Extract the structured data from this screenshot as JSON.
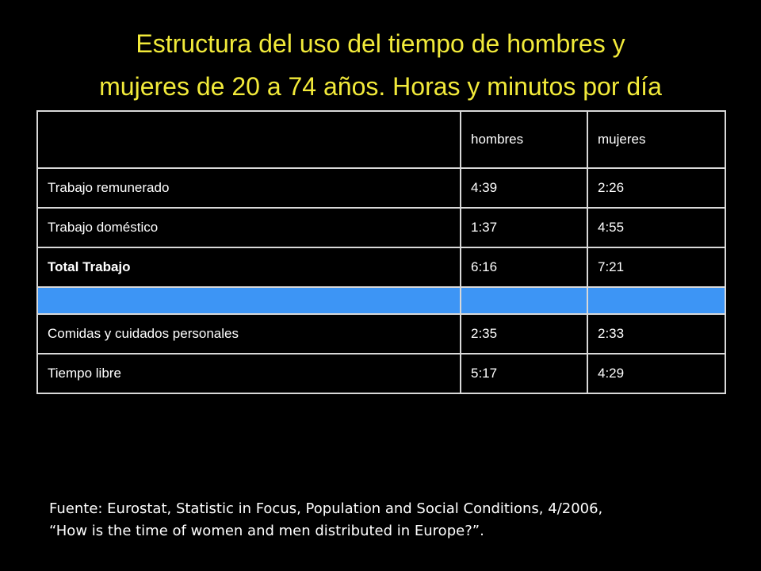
{
  "title": {
    "line1": "Estructura del uso del tiempo de hombres y",
    "line2": "mujeres de 20 a 74 años. Horas y minutos por día"
  },
  "table": {
    "headers": [
      "",
      "hombres",
      "mujeres"
    ],
    "rows": [
      {
        "label": "Trabajo remunerado",
        "hombres": "4:39",
        "mujeres": "2:26"
      },
      {
        "label": "Trabajo doméstico",
        "hombres": "1:37",
        "mujeres": "4:55"
      },
      {
        "label": "Total Trabajo",
        "hombres": "6:16",
        "mujeres": "7:21"
      },
      {
        "label": "",
        "hombres": "",
        "mujeres": ""
      },
      {
        "label": "Comidas y cuidados personales",
        "hombres": "2:35",
        "mujeres": "2:33"
      },
      {
        "label": "Tiempo libre",
        "hombres": "5:17",
        "mujeres": "4:29"
      }
    ]
  },
  "source": {
    "line1": "Fuente: Eurostat, Statistic in Focus, Population and Social Conditions, 4/2006,",
    "line2": "“How is  the time of women and men distributed in Europe?”."
  },
  "colors": {
    "background": "#000000",
    "title": "#f2ea3a",
    "spacer_row": "#3d95f5",
    "text": "#ffffff"
  }
}
